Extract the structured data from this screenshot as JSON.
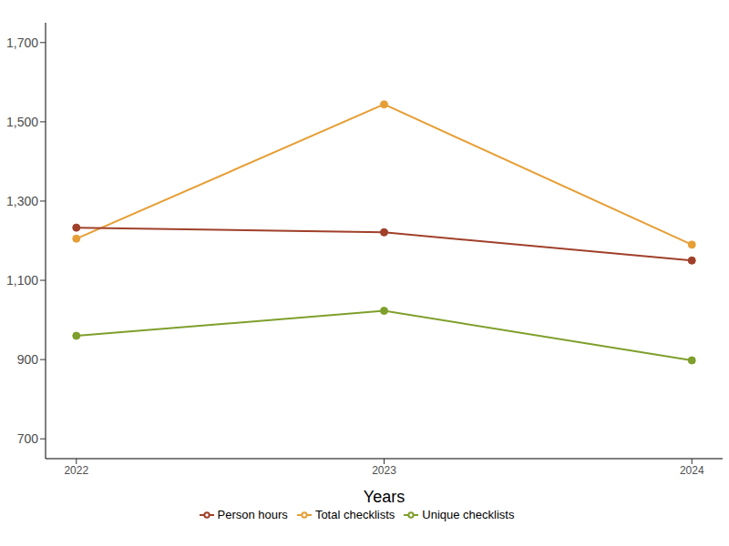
{
  "chart_data": {
    "type": "line",
    "x_label": "Years",
    "x": [
      2022,
      2023,
      2024
    ],
    "xlim": [
      2021.9,
      2024.1
    ],
    "xticks": [
      2022,
      2023,
      2024
    ],
    "ylim": [
      650,
      1750
    ],
    "yticks": [
      {
        "value": 700,
        "label": "700"
      },
      {
        "value": 900,
        "label": "900"
      },
      {
        "value": 1100,
        "label": "1,100"
      },
      {
        "value": 1300,
        "label": "1,300"
      },
      {
        "value": 1500,
        "label": "1,500"
      },
      {
        "value": 1700,
        "label": "1,700"
      }
    ],
    "grid": false,
    "legend": "bottom",
    "series": [
      {
        "name": "Unique checklists",
        "color": "#7f9f2c",
        "values": [
          960,
          1023,
          898
        ],
        "marker": "circle",
        "line_style": "solid"
      },
      {
        "name": "Total checklists",
        "color": "#e69f36",
        "values": [
          1205,
          1544,
          1190
        ],
        "marker": "circle",
        "line_style": "solid"
      },
      {
        "name": "Person hours",
        "color": "#a0402a",
        "values": [
          1233,
          1221,
          1150
        ],
        "marker": "circle",
        "line_style": "solid"
      }
    ]
  }
}
